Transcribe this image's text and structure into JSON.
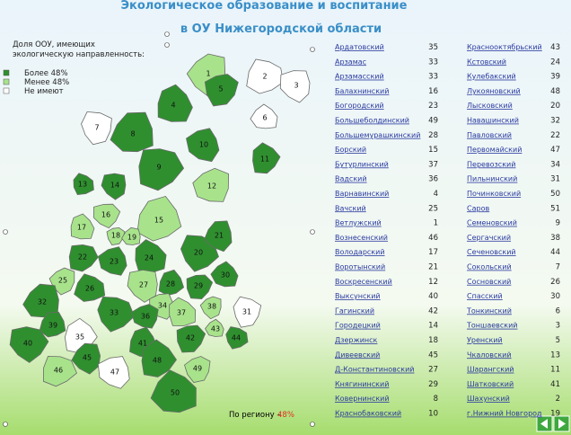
{
  "header": {
    "title": "Экологическое образование и воспитание",
    "subtitle": "в ОУ Нижегородской области"
  },
  "legend": {
    "title": "Доля ООУ, имеющих экологическую направленность:",
    "items": [
      {
        "label": "Более 48%",
        "color": "#2f8f2f"
      },
      {
        "label": "Менее 48%",
        "color": "#a8e38c"
      },
      {
        "label": "Не имеют",
        "color": "#ffffff"
      }
    ]
  },
  "footer": {
    "label": "По региону –",
    "value": "48%"
  },
  "map": {
    "regions": [
      {
        "label": "1",
        "color": "#a8e38c"
      },
      {
        "label": "2",
        "color": "#ffffff"
      },
      {
        "label": "3",
        "color": "#ffffff"
      },
      {
        "label": "4",
        "color": "#2f8f2f"
      },
      {
        "label": "5",
        "color": "#2f8f2f"
      },
      {
        "label": "6",
        "color": "#ffffff"
      },
      {
        "label": "7",
        "color": "#ffffff"
      },
      {
        "label": "8",
        "color": "#2f8f2f"
      },
      {
        "label": "9",
        "color": "#2f8f2f"
      },
      {
        "label": "10",
        "color": "#2f8f2f"
      },
      {
        "label": "11",
        "color": "#2f8f2f"
      },
      {
        "label": "12",
        "color": "#a8e38c"
      },
      {
        "label": "13",
        "color": "#2f8f2f"
      },
      {
        "label": "14",
        "color": "#2f8f2f"
      },
      {
        "label": "15",
        "color": "#a8e38c"
      },
      {
        "label": "16",
        "color": "#a8e38c"
      },
      {
        "label": "17",
        "color": "#a8e38c"
      },
      {
        "label": "18",
        "color": "#a8e38c"
      },
      {
        "label": "19",
        "color": "#a8e38c"
      },
      {
        "label": "20",
        "color": "#2f8f2f"
      },
      {
        "label": "21",
        "color": "#2f8f2f"
      },
      {
        "label": "22",
        "color": "#2f8f2f"
      },
      {
        "label": "23",
        "color": "#2f8f2f"
      },
      {
        "label": "24",
        "color": "#2f8f2f"
      },
      {
        "label": "25",
        "color": "#a8e38c"
      },
      {
        "label": "26",
        "color": "#2f8f2f"
      },
      {
        "label": "27",
        "color": "#a8e38c"
      },
      {
        "label": "28",
        "color": "#2f8f2f"
      },
      {
        "label": "29",
        "color": "#2f8f2f"
      },
      {
        "label": "30",
        "color": "#2f8f2f"
      },
      {
        "label": "31",
        "color": "#ffffff"
      },
      {
        "label": "32",
        "color": "#2f8f2f"
      },
      {
        "label": "33",
        "color": "#2f8f2f"
      },
      {
        "label": "34",
        "color": "#a8e38c"
      },
      {
        "label": "35",
        "color": "#ffffff"
      },
      {
        "label": "36",
        "color": "#2f8f2f"
      },
      {
        "label": "37",
        "color": "#a8e38c"
      },
      {
        "label": "38",
        "color": "#a8e38c"
      },
      {
        "label": "39",
        "color": "#2f8f2f"
      },
      {
        "label": "40",
        "color": "#2f8f2f"
      },
      {
        "label": "41",
        "color": "#2f8f2f"
      },
      {
        "label": "42",
        "color": "#2f8f2f"
      },
      {
        "label": "43",
        "color": "#a8e38c"
      },
      {
        "label": "44",
        "color": "#2f8f2f"
      },
      {
        "label": "45",
        "color": "#2f8f2f"
      },
      {
        "label": "46",
        "color": "#a8e38c"
      },
      {
        "label": "47",
        "color": "#ffffff"
      },
      {
        "label": "48",
        "color": "#2f8f2f"
      },
      {
        "label": "49",
        "color": "#a8e38c"
      },
      {
        "label": "50",
        "color": "#2f8f2f"
      }
    ]
  },
  "table": {
    "columns": [
      [
        [
          "Ардатовский",
          35
        ],
        [
          "Арзамас",
          33
        ],
        [
          "Арзамасский",
          33
        ],
        [
          "Балахнинский",
          16
        ],
        [
          "Богородский",
          23
        ],
        [
          "Большеболдинский",
          49
        ],
        [
          "Большемурашкинский",
          28
        ],
        [
          "Борский",
          15
        ],
        [
          "Бутурлинский",
          37
        ],
        [
          "Вадский",
          36
        ],
        [
          "Варнавинский",
          4
        ],
        [
          "Вачский",
          25
        ],
        [
          "Ветлужский",
          1
        ],
        [
          "Вознесенский",
          46
        ],
        [
          "Володарский",
          17
        ],
        [
          "Воротынский",
          21
        ],
        [
          "Воскресенский",
          12
        ],
        [
          "Выксунский",
          40
        ],
        [
          "Гагинский",
          42
        ],
        [
          "Городецкий",
          14
        ],
        [
          "Дзержинск",
          18
        ],
        [
          "Дивеевский",
          45
        ],
        [
          "Д-Константиновский",
          27
        ],
        [
          "Княгининский",
          29
        ],
        [
          "Ковернинский",
          8
        ],
        [
          "Краснобаковский",
          10
        ]
      ],
      [
        [
          "Краснооктябрьский",
          43
        ],
        [
          "Кстовский",
          24
        ],
        [
          "Кулебакский",
          39
        ],
        [
          "Лукояновский",
          48
        ],
        [
          "Лысковский",
          20
        ],
        [
          "Навашинский",
          32
        ],
        [
          "Павловский",
          22
        ],
        [
          "Первомайский",
          47
        ],
        [
          "Перевозский",
          34
        ],
        [
          "Пильнинский",
          31
        ],
        [
          "Починковский",
          50
        ],
        [
          "Саров",
          51
        ],
        [
          "Семеновский",
          9
        ],
        [
          "Сергачский",
          38
        ],
        [
          "Сеченовский",
          44
        ],
        [
          "Сокольский",
          7
        ],
        [
          "Сосновский",
          26
        ],
        [
          "Спасский",
          30
        ],
        [
          "Тонкинский",
          6
        ],
        [
          "Тоншаевский",
          3
        ],
        [
          "Уренский",
          5
        ],
        [
          "Чкаловский",
          13
        ],
        [
          "Шарангский",
          11
        ],
        [
          "Шатковский",
          41
        ],
        [
          "Шахунский",
          2
        ],
        [
          "г.Нижний Новгород",
          19
        ]
      ]
    ]
  }
}
